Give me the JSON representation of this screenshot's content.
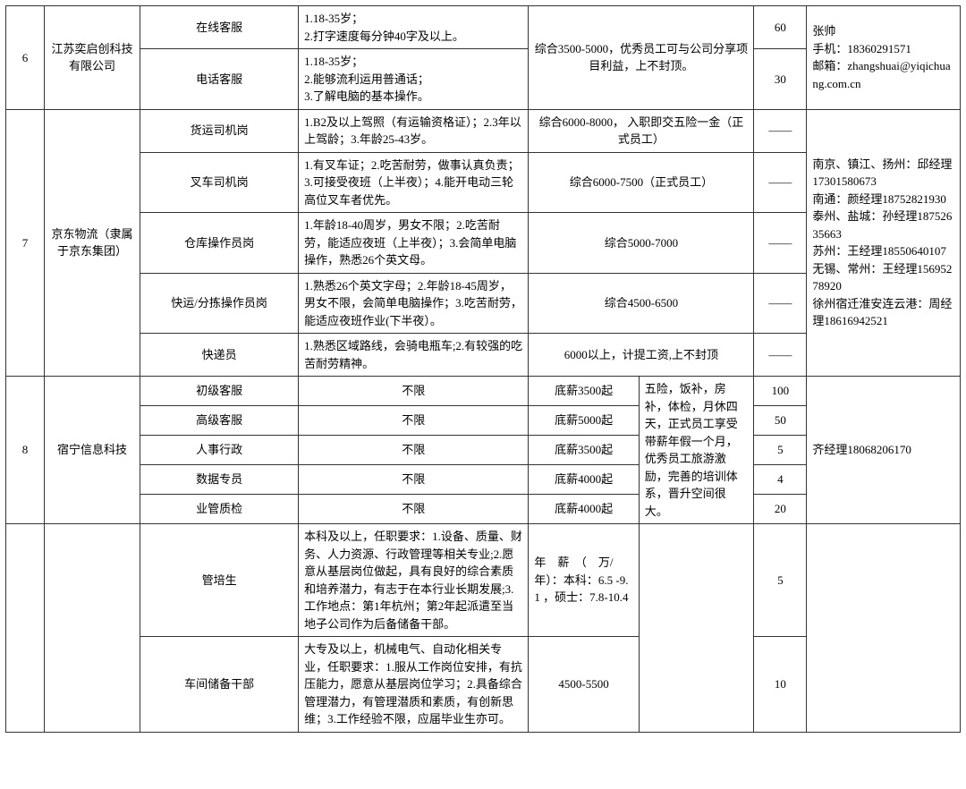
{
  "rows": {
    "r6": {
      "index": "6",
      "company": "江苏奕启创科技有限公司",
      "positions": [
        {
          "name": "在线客服",
          "req": "1.18-35岁；\n2.打字速度每分钟40字及以上。",
          "count": "60"
        },
        {
          "name": "电话客服",
          "req": "1.18-35岁；\n2.能够流利运用普通话；\n3.了解电脑的基本操作。",
          "count": "30"
        }
      ],
      "salary_benefit": "综合3500-5000，优秀员工可与公司分享项目利益，上不封顶。",
      "contact": "张帅\n手机：18360291571\n邮箱：zhangshuai@yiqichuang.com.cn"
    },
    "r7": {
      "index": "7",
      "company": "京东物流（隶属于京东集团）",
      "positions": [
        {
          "name": "货运司机岗",
          "req": "1.B2及以上驾照（有运输资格证）；2.3年以上驾龄；3.年龄25-43岁。",
          "salary": "综合6000-8000，  入职即交五险一金（正式员工）",
          "count": "——"
        },
        {
          "name": "叉车司机岗",
          "req": "1.有叉车证；2.吃苦耐劳，做事认真负责；3.可接受夜班（上半夜）；4.能开电动三轮高位叉车者优先。",
          "salary": "综合6000-7500（正式员工）",
          "count": "——"
        },
        {
          "name": "仓库操作员岗",
          "req": "1.年龄18-40周岁，男女不限；2.吃苦耐劳，能适应夜班（上半夜）；3.会简单电脑操作，熟悉26个英文母。",
          "salary": "综合5000-7000",
          "count": "——"
        },
        {
          "name": "快运/分拣操作员岗",
          "req": "1.熟悉26个英文字母；2.年龄18-45周岁，男女不限，会简单电脑操作；3.吃苦耐劳，能适应夜班作业(下半夜）。",
          "salary": "综合4500-6500",
          "count": "——"
        },
        {
          "name": "快递员",
          "req": "1.熟悉区域路线，会骑电瓶车;2.有较强的吃苦耐劳精神。",
          "salary": "6000以上，计提工资,上不封顶",
          "count": "——"
        }
      ],
      "contact": "南京、镇江、扬州：邱经理  17301580673\n南通：颜经理18752821930\n泰州、盐城：孙经理18752635663\n苏州：王经理18550640107\n无锡、常州：王经理15695278920\n徐州宿迁淮安连云港：周经理18616942521"
    },
    "r8": {
      "index": "8",
      "company": "宿宁信息科技",
      "positions": [
        {
          "name": "初级客服",
          "req": "不限",
          "salary": "底薪3500起",
          "count": "100"
        },
        {
          "name": "高级客服",
          "req": "不限",
          "salary": "底薪5000起",
          "count": "50"
        },
        {
          "name": "人事行政",
          "req": "不限",
          "salary": "底薪3500起",
          "count": "5"
        },
        {
          "name": "数据专员",
          "req": "不限",
          "salary": "底薪4000起",
          "count": "4"
        },
        {
          "name": "业管质检",
          "req": "不限",
          "salary": "底薪4000起",
          "count": "20"
        }
      ],
      "benefit": "五险，饭补，房补，体检，月休四天，正式员工享受带薪年假一个月，优秀员工旅游激励，完善的培训体系，晋升空间很大。",
      "contact": "齐经理18068206170"
    },
    "r_extra": {
      "positions": [
        {
          "name": "管培生",
          "req": "本科及以上，任职要求：1.设备、质量、财务、人力资源、行政管理等相关专业;2.愿意从基层岗位做起，具有良好的综合素质和培养潜力，有志于在本行业长期发展;3.工作地点：第1年杭州；第2年起派遣至当地子公司作为后备储备干部。",
          "salary": "年　薪　（　万/年）：本科：6.5 -9.1 ，硕士：7.8-10.4",
          "count": "5"
        },
        {
          "name": "车间储备干部",
          "req": "大专及以上，机械电气、自动化相关专业，任职要求：1.服从工作岗位安排，有抗压能力，愿意从基层岗位学习；2.具备综合管理潜力，有管理潜质和素质，有创新思维；3.工作经验不限，应届毕业生亦可。",
          "salary": "4500-5500",
          "count": "10"
        }
      ]
    }
  }
}
